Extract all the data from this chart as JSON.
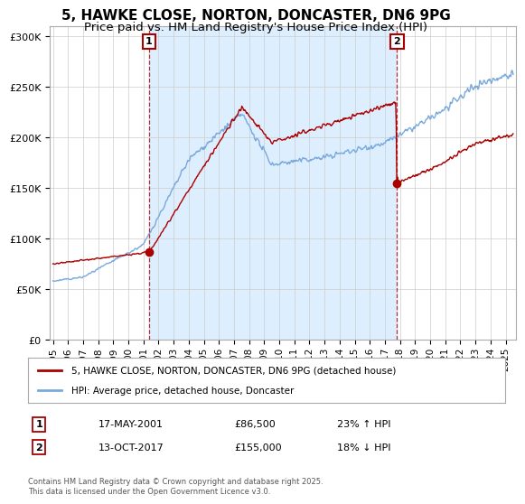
{
  "title1": "5, HAWKE CLOSE, NORTON, DONCASTER, DN6 9PG",
  "title2": "Price paid vs. HM Land Registry's House Price Index (HPI)",
  "legend_property": "5, HAWKE CLOSE, NORTON, DONCASTER, DN6 9PG (detached house)",
  "legend_hpi": "HPI: Average price, detached house, Doncaster",
  "annotation1": {
    "num": "1",
    "date": "17-MAY-2001",
    "price": "£86,500",
    "hpi": "23% ↑ HPI"
  },
  "annotation2": {
    "num": "2",
    "date": "13-OCT-2017",
    "price": "£155,000",
    "hpi": "18% ↓ HPI"
  },
  "copyright": "Contains HM Land Registry data © Crown copyright and database right 2025.\nThis data is licensed under the Open Government Licence v3.0.",
  "property_color": "#aa0000",
  "hpi_color": "#7aaadd",
  "shade_color": "#ddeeff",
  "ylim": [
    0,
    310000
  ],
  "yticks": [
    0,
    50000,
    100000,
    150000,
    200000,
    250000,
    300000
  ],
  "sale1_year": 2001.37,
  "sale2_year": 2017.8,
  "sale1_price": 86500,
  "sale2_price": 155000,
  "xmin": 1994.8,
  "xmax": 2025.7
}
